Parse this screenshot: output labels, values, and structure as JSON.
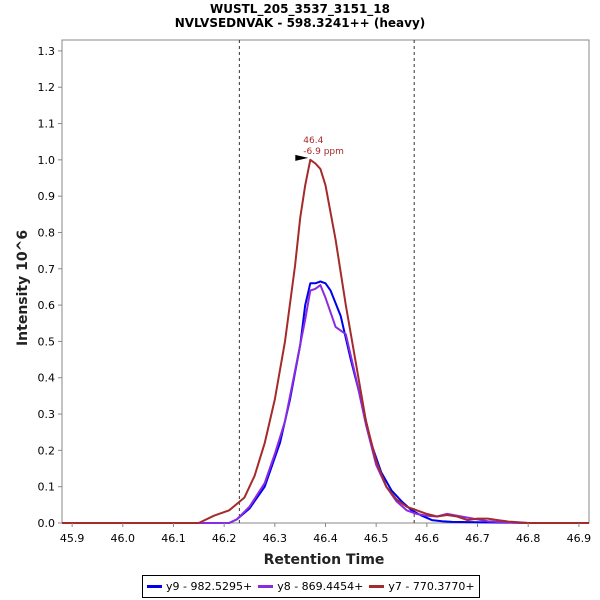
{
  "chart_data": {
    "type": "line",
    "title": "WUSTL_205_3537_3151_18",
    "subtitle": "NVLVSEDNVAK - 598.3241++ (heavy)",
    "xlabel": "Retention Time",
    "ylabel": "Intensity 10^6",
    "xlim": [
      45.88,
      46.92
    ],
    "ylim": [
      0,
      1.33
    ],
    "xticks": [
      "45.9",
      "46.0",
      "46.1",
      "46.2",
      "46.3",
      "46.4",
      "46.5",
      "46.6",
      "46.7",
      "46.8",
      "46.9"
    ],
    "yticks": [
      "0.0",
      "0.1",
      "0.2",
      "0.3",
      "0.4",
      "0.5",
      "0.6",
      "0.7",
      "0.8",
      "0.9",
      "1.0",
      "1.1",
      "1.2",
      "1.3"
    ],
    "boundaries": [
      46.23,
      46.575
    ],
    "grid": false,
    "legend_position": "bottom",
    "annotation": {
      "x": 46.37,
      "y": 1.0,
      "line1": "46.4",
      "line2": "-6.9 ppm"
    },
    "series": [
      {
        "name": "y9 - 982.5295+",
        "color": "#0000ee",
        "x": [
          45.88,
          46.18,
          46.21,
          46.225,
          46.25,
          46.28,
          46.31,
          46.33,
          46.35,
          46.36,
          46.37,
          46.38,
          46.39,
          46.4,
          46.41,
          46.43,
          46.45,
          46.47,
          46.49,
          46.51,
          46.53,
          46.55,
          46.57,
          46.59,
          46.61,
          46.63,
          46.65,
          46.7,
          46.75,
          46.8,
          46.92
        ],
        "y": [
          0,
          0,
          0,
          0.01,
          0.04,
          0.1,
          0.22,
          0.34,
          0.49,
          0.6,
          0.66,
          0.66,
          0.665,
          0.66,
          0.64,
          0.57,
          0.45,
          0.34,
          0.22,
          0.14,
          0.09,
          0.06,
          0.035,
          0.02,
          0.008,
          0.005,
          0.003,
          0.002,
          0.001,
          0,
          0
        ]
      },
      {
        "name": "y8 - 869.4454+",
        "color": "#8a2be2",
        "x": [
          45.88,
          46.18,
          46.21,
          46.225,
          46.25,
          46.28,
          46.3,
          46.32,
          46.34,
          46.36,
          46.37,
          46.38,
          46.39,
          46.4,
          46.41,
          46.42,
          46.44,
          46.46,
          46.48,
          46.5,
          46.52,
          46.54,
          46.56,
          46.58,
          46.6,
          46.62,
          46.64,
          46.66,
          46.68,
          46.7,
          46.72,
          46.75,
          46.8,
          46.92
        ],
        "y": [
          0,
          0,
          0,
          0.01,
          0.045,
          0.11,
          0.19,
          0.28,
          0.42,
          0.56,
          0.64,
          0.645,
          0.655,
          0.62,
          0.58,
          0.54,
          0.52,
          0.4,
          0.27,
          0.16,
          0.1,
          0.06,
          0.035,
          0.025,
          0.02,
          0.018,
          0.025,
          0.02,
          0.015,
          0.01,
          0.005,
          0.002,
          0,
          0
        ]
      },
      {
        "name": "y7 - 770.3770+",
        "color": "#a52a2a",
        "x": [
          45.88,
          46.15,
          46.18,
          46.21,
          46.24,
          46.26,
          46.28,
          46.3,
          46.32,
          46.34,
          46.35,
          46.36,
          46.37,
          46.38,
          46.39,
          46.4,
          46.42,
          46.44,
          46.46,
          46.48,
          46.5,
          46.52,
          46.54,
          46.56,
          46.58,
          46.6,
          46.62,
          46.64,
          46.66,
          46.68,
          46.7,
          46.72,
          46.74,
          46.76,
          46.78,
          46.8,
          46.92
        ],
        "y": [
          0,
          0,
          0.02,
          0.035,
          0.07,
          0.13,
          0.22,
          0.34,
          0.5,
          0.71,
          0.84,
          0.93,
          1.0,
          0.99,
          0.975,
          0.93,
          0.78,
          0.6,
          0.44,
          0.28,
          0.17,
          0.1,
          0.065,
          0.045,
          0.035,
          0.025,
          0.018,
          0.022,
          0.018,
          0.008,
          0.012,
          0.012,
          0.008,
          0.004,
          0.002,
          0,
          0
        ]
      }
    ]
  }
}
